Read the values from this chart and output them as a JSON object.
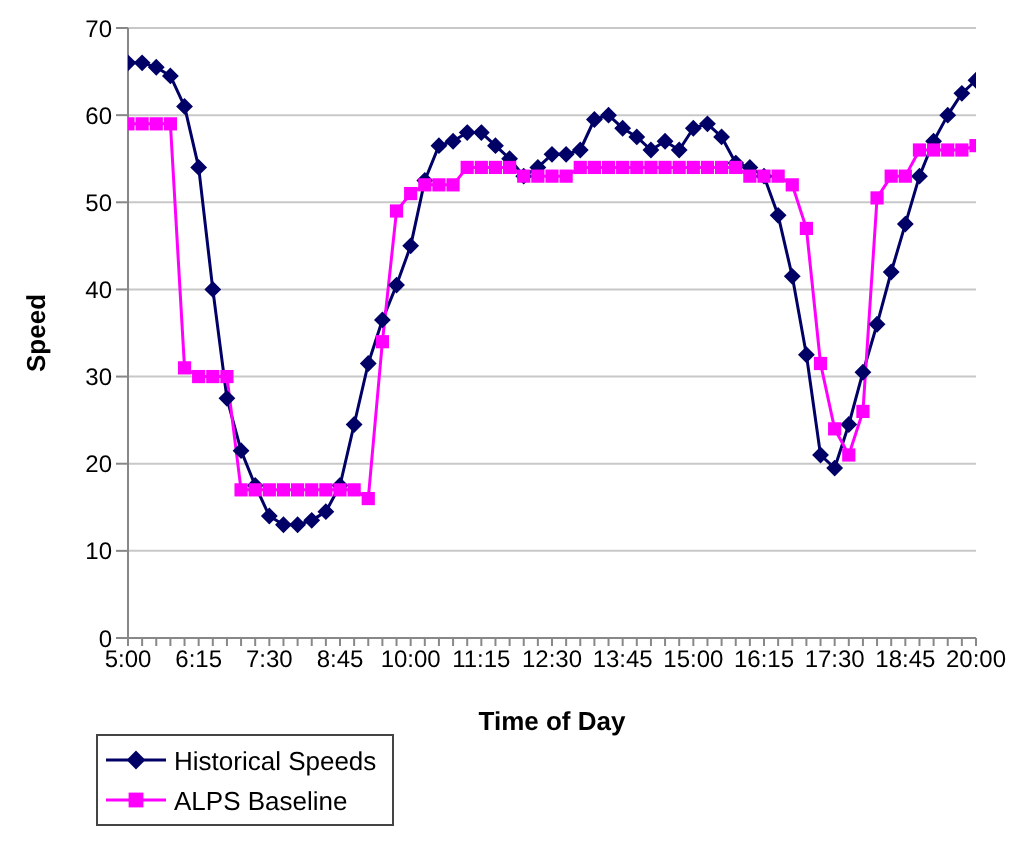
{
  "chart_data": {
    "type": "line",
    "xlabel": "Time of Day",
    "ylabel": "Speed",
    "categories": [
      "5:00",
      null,
      null,
      null,
      null,
      "6:15",
      null,
      null,
      null,
      null,
      "7:30",
      null,
      null,
      null,
      null,
      "8:45",
      null,
      null,
      null,
      null,
      "10:00",
      null,
      null,
      null,
      null,
      "11:15",
      null,
      null,
      null,
      null,
      "12:30",
      null,
      null,
      null,
      null,
      "13:45",
      null,
      null,
      null,
      null,
      "15:00",
      null,
      null,
      null,
      null,
      "16:15",
      null,
      null,
      null,
      null,
      "17:30",
      null,
      null,
      null,
      null,
      "18:45",
      null,
      null,
      null,
      null,
      "20:00"
    ],
    "series": [
      {
        "name": "Historical Speeds",
        "color": "#000066",
        "marker": "diamond",
        "values": [
          66,
          66,
          65.5,
          64.5,
          61,
          54,
          40,
          27.5,
          21.5,
          17.5,
          14,
          13,
          13,
          13.5,
          14.5,
          17.5,
          24.5,
          31.5,
          36.5,
          40.5,
          45,
          52.5,
          56.5,
          57,
          58,
          58,
          56.5,
          55,
          53,
          54,
          55.5,
          55.5,
          56,
          59.5,
          60,
          58.5,
          57.5,
          56,
          57,
          56,
          58.5,
          59,
          57.5,
          54.5,
          54,
          53,
          48.5,
          41.5,
          32.5,
          21,
          19.5,
          24.5,
          30.5,
          36,
          42,
          47.5,
          53,
          57,
          60,
          62.5,
          64
        ]
      },
      {
        "name": "ALPS Baseline",
        "color": "#ff00ff",
        "marker": "square",
        "values": [
          59,
          59,
          59,
          59,
          31,
          30,
          30,
          30,
          17,
          17,
          17,
          17,
          17,
          17,
          17,
          17,
          17,
          16,
          34,
          49,
          51,
          52,
          52,
          52,
          54,
          54,
          54,
          54,
          53,
          53,
          53,
          53,
          54,
          54,
          54,
          54,
          54,
          54,
          54,
          54,
          54,
          54,
          54,
          54,
          53,
          53,
          53,
          52,
          47,
          31.5,
          24,
          21,
          26,
          50.5,
          53,
          53,
          56,
          56,
          56,
          56,
          56.5
        ]
      }
    ],
    "ylim": [
      0,
      70
    ],
    "yticks": [
      0,
      10,
      20,
      30,
      40,
      50,
      60,
      70
    ],
    "grid": "y",
    "legend": "bottom left"
  }
}
